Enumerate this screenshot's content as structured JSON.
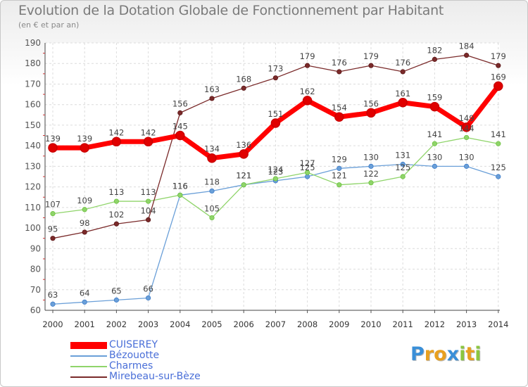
{
  "chart_data": {
    "type": "line",
    "title": "Evolution de la Dotation Globale de Fonctionnement par Habitant",
    "subtitle": "(en € et par an)",
    "xlabel": "",
    "ylabel": "",
    "ylim": [
      60,
      190
    ],
    "yticks": [
      60,
      70,
      80,
      90,
      100,
      110,
      120,
      130,
      140,
      150,
      160,
      170,
      180,
      190
    ],
    "grid": true,
    "legend_position": "bottom-left",
    "categories": [
      "2000",
      "2001",
      "2002",
      "2003",
      "2004",
      "2005",
      "2006",
      "2007",
      "2008",
      "2009",
      "2010",
      "2011",
      "2012",
      "2013",
      "2014"
    ],
    "series": [
      {
        "name": "CUISEREY",
        "color": "#ff0000",
        "marker": "#cc0000",
        "thick": true,
        "values": [
          139,
          139,
          142,
          142,
          145,
          134,
          136,
          151,
          162,
          154,
          156,
          161,
          159,
          149,
          169
        ]
      },
      {
        "name": "Bézouotte",
        "color": "#6a9fd8",
        "marker": "#3d7cc9",
        "thick": false,
        "values": [
          63,
          64,
          65,
          66,
          116,
          118,
          121,
          123,
          125,
          129,
          130,
          131,
          130,
          130,
          125
        ]
      },
      {
        "name": "Charmes",
        "color": "#8fd46a",
        "marker": "#6cc23d",
        "thick": false,
        "values": [
          107,
          109,
          113,
          113,
          116,
          105,
          121,
          124,
          127,
          121,
          122,
          125,
          141,
          144,
          141
        ]
      },
      {
        "name": "Mirebeau-sur-Bèze",
        "color": "#7a2a2a",
        "marker": "#5c1818",
        "thick": false,
        "values": [
          95,
          98,
          102,
          104,
          156,
          163,
          168,
          173,
          179,
          176,
          179,
          176,
          182,
          184,
          179
        ]
      }
    ]
  },
  "branding": {
    "logo_letters": [
      "P",
      "r",
      "o",
      "x",
      "i",
      "t",
      "i"
    ],
    "logo_colors": [
      "#3a8fd8",
      "#e8a020",
      "#e8a020",
      "#3a8fd8",
      "#8cc63f",
      "#e8a020",
      "#8cc63f"
    ]
  }
}
